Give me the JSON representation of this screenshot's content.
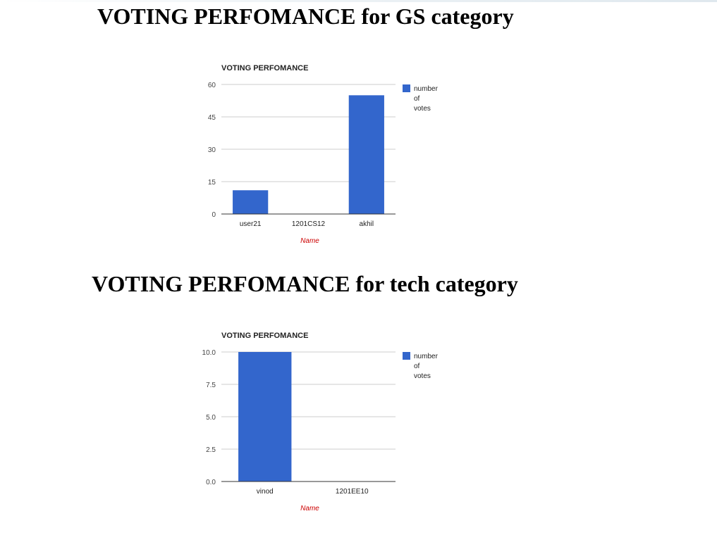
{
  "page": {
    "heading_gs": "VOTING PERFOMANCE for GS category",
    "heading_tech": "VOTING PERFOMANCE for tech category"
  },
  "colors": {
    "bar": "#3366cc",
    "grid": "#cccccc",
    "axis": "#333333",
    "xlabel": "#cc0000",
    "text": "#222222"
  },
  "chart_data": [
    {
      "type": "bar",
      "title": "VOTING PERFOMANCE",
      "categories": [
        "user21",
        "1201CS12",
        "akhil"
      ],
      "series": [
        {
          "name": "number of votes",
          "values": [
            11,
            0,
            55
          ]
        }
      ],
      "legend_lines": [
        "number",
        "of",
        "votes"
      ],
      "xlabel": "Name",
      "ylabel": "",
      "ylim": [
        0,
        60
      ],
      "yticks": [
        0,
        15,
        30,
        45,
        60
      ],
      "ytick_labels": [
        "0",
        "15",
        "30",
        "45",
        "60"
      ],
      "grid": true,
      "legend_position": "right"
    },
    {
      "type": "bar",
      "title": "VOTING PERFOMANCE",
      "categories": [
        "vinod",
        "1201EE10"
      ],
      "series": [
        {
          "name": "number of votes",
          "values": [
            10,
            0
          ]
        }
      ],
      "legend_lines": [
        "number",
        "of",
        "votes"
      ],
      "xlabel": "Name",
      "ylabel": "",
      "ylim": [
        0,
        10
      ],
      "yticks": [
        0,
        2.5,
        5,
        7.5,
        10
      ],
      "ytick_labels": [
        "0.0",
        "2.5",
        "5.0",
        "7.5",
        "10.0"
      ],
      "grid": true,
      "legend_position": "right"
    }
  ]
}
